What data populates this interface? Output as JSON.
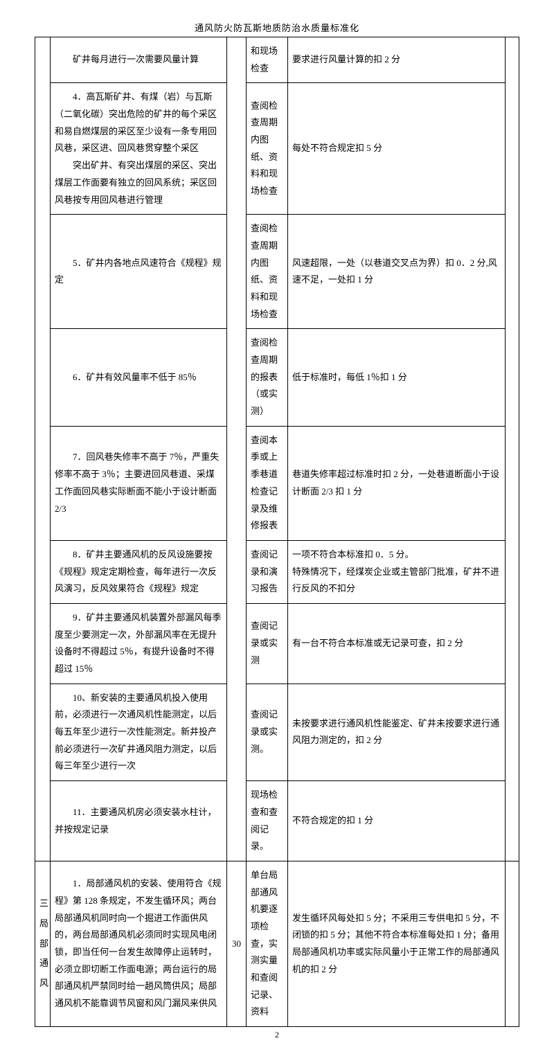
{
  "header": "通风防火防瓦斯地质防治水质量标准化",
  "page_number": "2",
  "colors": {
    "border": "#000000",
    "text": "#000000",
    "background": "#ffffff"
  },
  "section_label": "三 局 部 通 风",
  "rows": [
    {
      "desc": "矿井每月进行一次需要风量计算",
      "method": "和现场检查",
      "criteria": "要求进行风量计算的扣 2 分"
    },
    {
      "desc_lines": [
        "4．高瓦斯矿井、有煤（岩）与瓦斯（二氧化碳）突出危险的矿井的每个采区和易自燃煤层的采区至少设有一条专用回风巷，采区进、回风巷贯穿整个采区",
        "突出矿井、有突出煤层的采区、突出煤层工作面要有独立的回风系统；采区回风巷按专用回风巷进行管理"
      ],
      "method": "查阅检查周期内图纸、资料和现场检查",
      "criteria": "每处不符合规定扣 5 分"
    },
    {
      "desc": "5．矿井内各地点风速符合《规程》规定",
      "method": "查阅检查周期内图纸、资料和现场检查",
      "criteria": "风速超限，一处（以巷道交叉点为界）扣 0．2 分,风速不足，一处扣 1 分"
    },
    {
      "desc": "6．矿井有效风量率不低于 85％",
      "method": "查阅检查周期的报表（或实测）",
      "criteria": "低于标准时，每低 1％扣 1 分"
    },
    {
      "desc": "7．回风巷失修率不高于 7％，严重失修率不高于 3％；主要进回风巷道、采煤工作面回风巷实际断面不能小于设计断面 2/3",
      "method": "查阅本季或上季巷道检查记录及维修报表",
      "criteria": "巷道失修率超过标准时扣 2 分，一处巷道断面小于设计断面 2/3 扣 1 分"
    },
    {
      "desc": "8．矿井主要通风机的反风设施要按《规程》规定定期检查，每年进行一次反风演习，反风效果符合《规程》规定",
      "method": "查阅记录和演习报告",
      "criteria": "一项不符合本标准扣 0．5 分。\n特殊情况下，经煤炭企业或主管部门批准，矿井不进行反风的不扣分"
    },
    {
      "desc": "9．矿井主要通风机装置外部漏风每季度至少要测定一次，外部漏风率在无提升设备时不得超过 5％，有提升设备时不得超过 15％",
      "method": "查阅记录或实测",
      "criteria": "有一台不符合本标准或无记录可查，扣 2 分"
    },
    {
      "desc": "10、新安装的主要通风机投入使用前，必须进行一次通风机性能测定，以后每五年至少进行一次性能测定。新井投产前必须进行一次矿井通风阻力测定，以后每三年至少进行一次",
      "method": "查阅记录或实测。",
      "criteria": "未按要求进行通风机性能鉴定、矿井未按要求进行通风阻力测定的，扣 2 分"
    },
    {
      "desc": "11．主要通风机房必须安装水柱计，并按规定记录",
      "method": "现场检查和查阅记录。",
      "criteria": "不符合规定的扣 1 分"
    },
    {
      "desc": "1．局部通风机的安装、使用符合《规程》第 128 条规定，不发生循环风；两台局部通风机同时向一个掘进工作面供风的，两台局部通风机必须同时实现风电闭锁，即当任何一台发生故障停止运转时，必须立即切断工作面电源；两台运行的局部通风机严禁同时给一趟风筒供风；局部通风机不能靠调节风窗和风门漏风来供风",
      "score": "30",
      "method": "单台局部通风机要逐项检查，实测实量和查阅记录、资料",
      "criteria": "发生循环风每处扣 5 分；不采用三专供电扣 5 分，不闭锁的扣 5 分；其他不符合本标准每处扣 1 分；备用局部通风机功率或实际风量小于正常工作的局部通风机的扣 2 分"
    }
  ]
}
